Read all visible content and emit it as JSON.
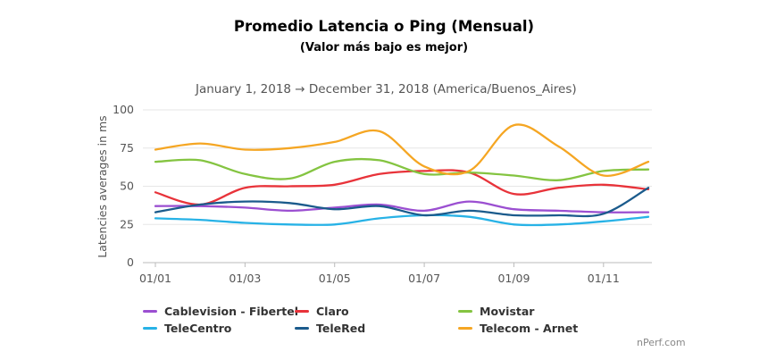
{
  "chart_data": {
    "type": "line",
    "title": "Promedio Latencia o Ping (Mensual)",
    "subtitle": "(Valor más bajo es mejor)",
    "period": "January 1, 2018 → December 31, 2018 (America/Buenos_Aires)",
    "xlabel": "",
    "ylabel": "Latencies averages in ms",
    "ylim": [
      0,
      100
    ],
    "yticks": [
      0,
      25,
      50,
      75,
      100
    ],
    "x": [
      "01/01",
      "01/02",
      "01/03",
      "01/04",
      "01/05",
      "01/06",
      "01/07",
      "01/08",
      "01/09",
      "01/10",
      "01/11",
      "01/12"
    ],
    "xtick_labels": [
      "01/01",
      "01/03",
      "01/05",
      "01/07",
      "01/09",
      "01/11"
    ],
    "grid": true,
    "legend_position": "bottom",
    "series": [
      {
        "name": "Cablevision - Fibertel",
        "color": "#9b4fd1",
        "values": [
          37,
          37,
          36,
          34,
          36,
          38,
          34,
          40,
          35,
          34,
          33,
          33
        ]
      },
      {
        "name": "Claro",
        "color": "#e8333a",
        "values": [
          46,
          38,
          49,
          50,
          51,
          58,
          60,
          59,
          45,
          49,
          51,
          48
        ]
      },
      {
        "name": "Movistar",
        "color": "#84c441",
        "values": [
          66,
          67,
          58,
          55,
          66,
          67,
          58,
          59,
          57,
          54,
          60,
          61
        ]
      },
      {
        "name": "TeleCentro",
        "color": "#27b2e6",
        "values": [
          29,
          28,
          26,
          25,
          25,
          29,
          31,
          30,
          25,
          25,
          27,
          30
        ]
      },
      {
        "name": "TeleRed",
        "color": "#1b5b8c",
        "values": [
          33,
          38,
          40,
          39,
          35,
          37,
          31,
          34,
          31,
          31,
          32,
          49
        ]
      },
      {
        "name": "Telecom - Arnet",
        "color": "#f5a623",
        "values": [
          74,
          78,
          74,
          75,
          79,
          86,
          63,
          60,
          90,
          76,
          57,
          66
        ]
      }
    ]
  },
  "credit": "nPerf.com"
}
